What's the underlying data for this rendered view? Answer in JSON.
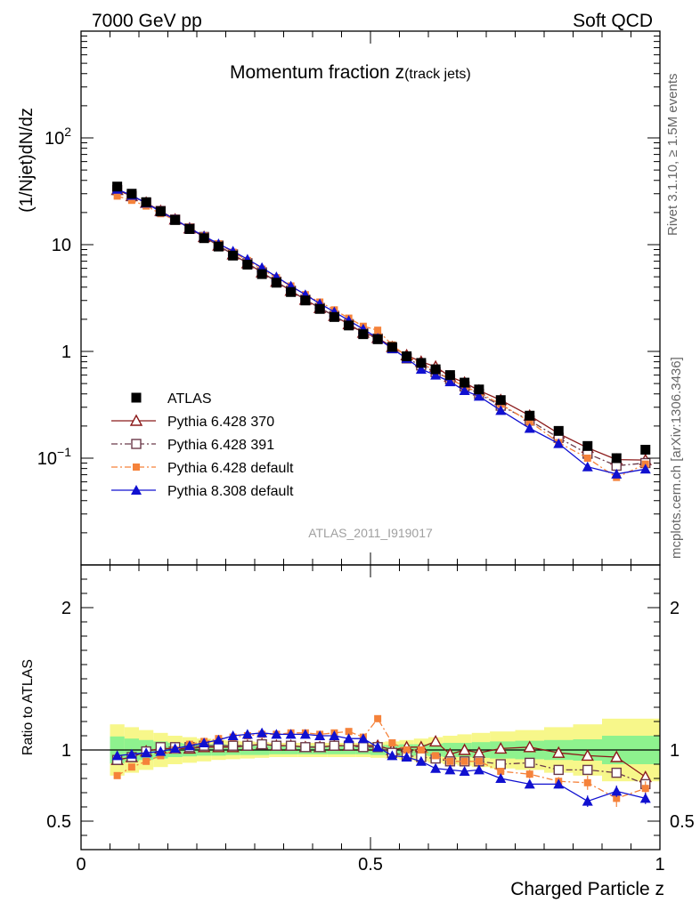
{
  "header": {
    "left": "7000 GeV pp",
    "right": "Soft QCD"
  },
  "side_text": {
    "rivet": "Rivet 3.1.10, ≥ 1.5M events",
    "mcplots": "mcplots.cern.ch [arXiv:1306.3436]"
  },
  "chart_data": [
    {
      "type": "scatter",
      "panel": "main",
      "title_main": "Momentum fraction z",
      "title_sub": "(track jets)",
      "ylabel": "(1/Njet)dN/dz",
      "analysis_id": "ATLAS_2011_I919017",
      "yscale": "log",
      "xlim": [
        0,
        1
      ],
      "ylim": [
        0.01,
        1000
      ],
      "yticks": [
        {
          "value": 0.1,
          "base": "10",
          "exp": "−1"
        },
        {
          "value": 1,
          "label": "1"
        },
        {
          "value": 10,
          "label": "10"
        },
        {
          "value": 100,
          "base": "10",
          "exp": "2"
        }
      ],
      "x": [
        0.0625,
        0.0875,
        0.1125,
        0.1375,
        0.1625,
        0.1875,
        0.2125,
        0.2375,
        0.2625,
        0.2875,
        0.3125,
        0.3375,
        0.3625,
        0.3875,
        0.4125,
        0.4375,
        0.4625,
        0.4875,
        0.5125,
        0.5375,
        0.5625,
        0.5875,
        0.6125,
        0.6375,
        0.6625,
        0.6875,
        0.725,
        0.775,
        0.825,
        0.875,
        0.925,
        0.975
      ],
      "series": [
        {
          "name": "ATLAS",
          "color": "#000000",
          "marker": "square-filled",
          "line": "none",
          "values": [
            35,
            30,
            25,
            20.5,
            17,
            14,
            11.5,
            9.6,
            7.9,
            6.5,
            5.3,
            4.4,
            3.6,
            3.0,
            2.5,
            2.1,
            1.75,
            1.45,
            1.3,
            1.1,
            0.9,
            0.78,
            0.68,
            0.6,
            0.51,
            0.44,
            0.35,
            0.25,
            0.18,
            0.13,
            0.1,
            0.12
          ]
        },
        {
          "name": "Pythia 6.428 370",
          "color": "#8b1a1a",
          "marker": "triangle-open",
          "line": "solid",
          "values": [
            32.5,
            28.5,
            24.7,
            20.7,
            17.2,
            14.2,
            11.8,
            9.8,
            8.1,
            6.7,
            5.5,
            4.5,
            3.7,
            3.05,
            2.55,
            2.15,
            1.8,
            1.5,
            1.34,
            1.1,
            0.92,
            0.8,
            0.72,
            0.58,
            0.51,
            0.43,
            0.35,
            0.25,
            0.17,
            0.125,
            0.097,
            0.096
          ]
        },
        {
          "name": "Pythia 6.428 391",
          "color": "#6b3a4a",
          "marker": "square-open",
          "line": "dashdot",
          "values": [
            32.5,
            28.5,
            24.7,
            20.7,
            17.2,
            14.2,
            11.8,
            9.8,
            8.1,
            6.7,
            5.5,
            4.5,
            3.7,
            3.05,
            2.55,
            2.15,
            1.8,
            1.48,
            1.32,
            1.07,
            0.86,
            0.74,
            0.64,
            0.55,
            0.47,
            0.4,
            0.31,
            0.225,
            0.155,
            0.11,
            0.085,
            0.09
          ]
        },
        {
          "name": "Pythia 6.428 default",
          "color": "#f5823a",
          "marker": "square-small",
          "line": "dashdot",
          "values": [
            28.5,
            26,
            23,
            19.5,
            17,
            14.5,
            12,
            10.2,
            8.5,
            7.1,
            5.9,
            4.9,
            4.1,
            3.4,
            2.9,
            2.45,
            2.05,
            1.72,
            1.58,
            1.15,
            0.9,
            0.78,
            0.65,
            0.55,
            0.47,
            0.41,
            0.32,
            0.22,
            0.14,
            0.1,
            0.066,
            0.088
          ]
        },
        {
          "name": "Pythia 8.308 default",
          "color": "#1010d0",
          "marker": "triangle-filled",
          "line": "solid",
          "values": [
            33,
            29,
            24.5,
            20.3,
            17.2,
            14.3,
            12,
            10.2,
            8.7,
            7.3,
            6.1,
            5.0,
            4.1,
            3.4,
            2.8,
            2.35,
            1.95,
            1.62,
            1.33,
            1.06,
            0.86,
            0.68,
            0.6,
            0.52,
            0.43,
            0.38,
            0.28,
            0.19,
            0.137,
            0.083,
            0.071,
            0.079
          ]
        }
      ],
      "legend": {
        "entries": [
          "ATLAS",
          "Pythia 6.428 370",
          "Pythia 6.428 391",
          "Pythia 6.428 default",
          "Pythia 8.308 default"
        ]
      }
    },
    {
      "type": "scatter",
      "panel": "ratio",
      "ylabel": "Ratio to ATLAS",
      "xlabel": "Charged Particle z",
      "xlim": [
        0,
        1
      ],
      "ylim": [
        0.3,
        2.3
      ],
      "xticks": [
        {
          "value": 0,
          "label": "0"
        },
        {
          "value": 0.5,
          "label": "0.5"
        },
        {
          "value": 1,
          "label": "1"
        }
      ],
      "yticks": [
        {
          "value": 0.5,
          "label": "0.5"
        },
        {
          "value": 1,
          "label": "1"
        },
        {
          "value": 2,
          "label": "2"
        }
      ],
      "band_colors": {
        "inner": "#8ef28e",
        "outer": "#f7f78a"
      },
      "band_inner": [
        0.095,
        0.08,
        0.07,
        0.06,
        0.05,
        0.045,
        0.04,
        0.04,
        0.035,
        0.035,
        0.035,
        0.03,
        0.03,
        0.03,
        0.03,
        0.03,
        0.03,
        0.03,
        0.035,
        0.035,
        0.04,
        0.04,
        0.045,
        0.05,
        0.05,
        0.055,
        0.06,
        0.065,
        0.07,
        0.075,
        0.1,
        0.1
      ],
      "band_outer": [
        0.18,
        0.16,
        0.14,
        0.12,
        0.1,
        0.09,
        0.08,
        0.07,
        0.065,
        0.06,
        0.055,
        0.05,
        0.05,
        0.05,
        0.05,
        0.05,
        0.05,
        0.05,
        0.055,
        0.06,
        0.07,
        0.08,
        0.09,
        0.1,
        0.11,
        0.12,
        0.13,
        0.14,
        0.16,
        0.18,
        0.22,
        0.22
      ],
      "series": [
        {
          "name": "Pythia 6.428 370",
          "color": "#8b1a1a",
          "values": [
            0.93,
            0.95,
            0.99,
            1.01,
            1.01,
            1.01,
            1.02,
            1.02,
            1.02,
            1.03,
            1.04,
            1.03,
            1.03,
            1.02,
            1.02,
            1.03,
            1.03,
            1.03,
            1.03,
            1.0,
            1.02,
            1.02,
            1.06,
            0.97,
            1.0,
            0.98,
            1.01,
            1.02,
            0.98,
            0.96,
            0.95,
            0.81
          ],
          "errors": [
            0.02,
            0.02,
            0.01,
            0.01,
            0.01,
            0.01,
            0.01,
            0.01,
            0.01,
            0.01,
            0.01,
            0.01,
            0.01,
            0.01,
            0.01,
            0.01,
            0.01,
            0.01,
            0.01,
            0.01,
            0.01,
            0.01,
            0.015,
            0.015,
            0.015,
            0.015,
            0.015,
            0.02,
            0.02,
            0.025,
            0.03,
            0.03
          ]
        },
        {
          "name": "Pythia 6.428 391",
          "color": "#6b3a4a",
          "values": [
            0.93,
            0.95,
            0.99,
            1.02,
            1.02,
            1.02,
            1.03,
            1.03,
            1.03,
            1.03,
            1.04,
            1.03,
            1.03,
            1.02,
            1.02,
            1.03,
            1.03,
            1.02,
            1.02,
            0.98,
            0.96,
            0.95,
            0.94,
            0.92,
            0.92,
            0.92,
            0.9,
            0.91,
            0.86,
            0.86,
            0.84,
            0.76
          ],
          "errors": [
            0.02,
            0.02,
            0.01,
            0.01,
            0.01,
            0.01,
            0.01,
            0.01,
            0.01,
            0.01,
            0.01,
            0.01,
            0.01,
            0.01,
            0.01,
            0.01,
            0.01,
            0.01,
            0.01,
            0.01,
            0.01,
            0.01,
            0.015,
            0.015,
            0.015,
            0.015,
            0.015,
            0.02,
            0.02,
            0.025,
            0.03,
            0.03
          ]
        },
        {
          "name": "Pythia 6.428 default",
          "color": "#f5823a",
          "values": [
            0.82,
            0.88,
            0.92,
            0.96,
            1.0,
            1.04,
            1.06,
            1.08,
            1.09,
            1.1,
            1.11,
            1.11,
            1.12,
            1.12,
            1.11,
            1.12,
            1.13,
            1.09,
            1.22,
            1.05,
            1.0,
            1.0,
            0.96,
            0.92,
            0.92,
            0.92,
            0.85,
            0.83,
            0.78,
            0.77,
            0.66,
            0.73
          ],
          "errors": [
            0.015,
            0.015,
            0.01,
            0.01,
            0.01,
            0.01,
            0.01,
            0.01,
            0.01,
            0.01,
            0.01,
            0.01,
            0.01,
            0.01,
            0.01,
            0.01,
            0.01,
            0.01,
            0.015,
            0.015,
            0.015,
            0.015,
            0.02,
            0.02,
            0.02,
            0.02,
            0.025,
            0.03,
            0.03,
            0.05,
            0.06,
            0.05
          ]
        },
        {
          "name": "Pythia 8.308 default",
          "color": "#1010d0",
          "values": [
            0.96,
            0.97,
            0.98,
            0.99,
            1.01,
            1.03,
            1.05,
            1.07,
            1.1,
            1.11,
            1.12,
            1.11,
            1.11,
            1.11,
            1.1,
            1.1,
            1.08,
            1.08,
            1.02,
            0.96,
            0.95,
            0.92,
            0.87,
            0.86,
            0.85,
            0.86,
            0.8,
            0.76,
            0.76,
            0.64,
            0.71,
            0.66
          ],
          "errors": [
            0.015,
            0.015,
            0.01,
            0.01,
            0.01,
            0.01,
            0.01,
            0.01,
            0.01,
            0.01,
            0.01,
            0.01,
            0.01,
            0.01,
            0.01,
            0.01,
            0.01,
            0.01,
            0.015,
            0.015,
            0.015,
            0.015,
            0.02,
            0.02,
            0.02,
            0.02,
            0.025,
            0.025,
            0.03,
            0.04,
            0.04,
            0.04
          ]
        }
      ]
    }
  ]
}
